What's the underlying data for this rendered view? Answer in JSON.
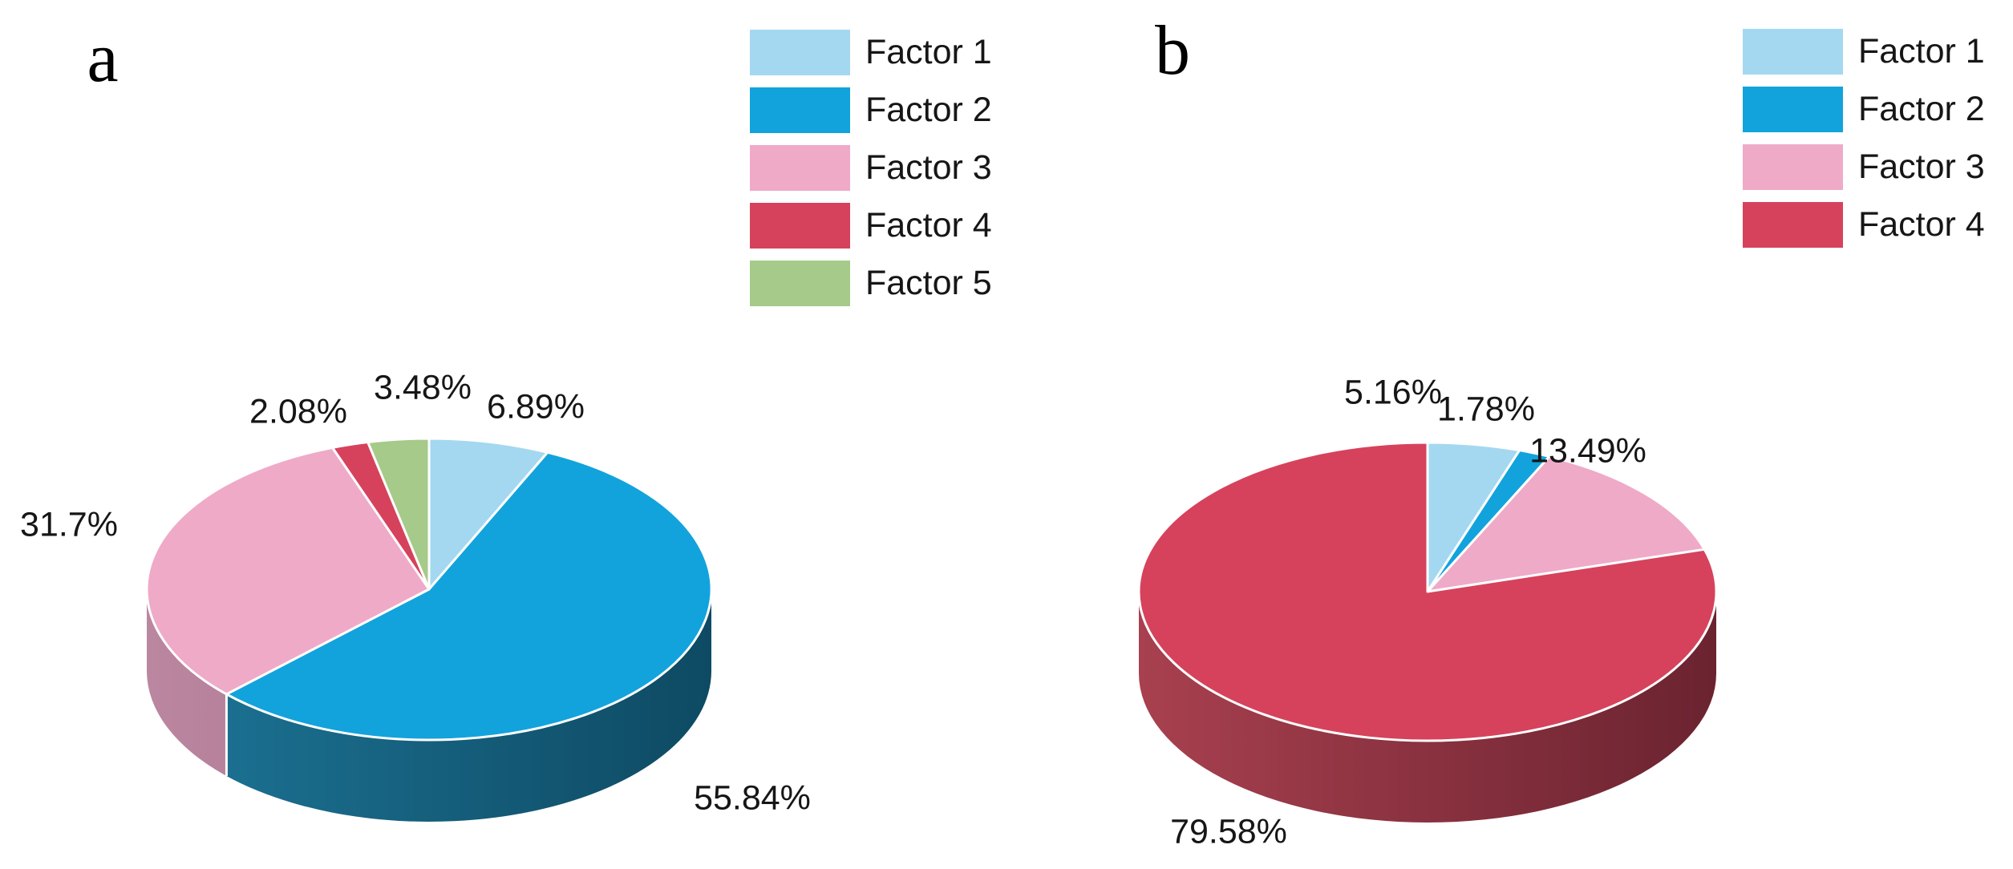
{
  "figure": {
    "background": "#ffffff",
    "text_color": "#161616"
  },
  "chart_data": [
    {
      "type": "pie",
      "title": "a",
      "effect": "3d",
      "direction": "clockwise",
      "start_angle_deg": 0,
      "legend_position": "top-right",
      "categories": [
        "Factor 1",
        "Factor 2",
        "Factor 3",
        "Factor 4",
        "Factor 5"
      ],
      "values": [
        6.89,
        55.84,
        31.7,
        2.08,
        3.48
      ],
      "labels": [
        "6.89%",
        "55.84%",
        "31.7%",
        "2.08%",
        "3.48%"
      ],
      "colors": [
        "#a4d8f1",
        "#12a3dc",
        "#efaac8",
        "#d6425c",
        "#a6ca89"
      ],
      "wall_colors": [
        null,
        [
          "#1d7597",
          "#0e4a63"
        ],
        [
          "#bb86a0",
          "#9d6680"
        ],
        null,
        null
      ]
    },
    {
      "type": "pie",
      "title": "b",
      "effect": "3d",
      "direction": "clockwise",
      "start_angle_deg": 0,
      "legend_position": "top-right",
      "categories": [
        "Factor 1",
        "Factor 2",
        "Factor 3",
        "Factor 4"
      ],
      "values": [
        5.16,
        1.78,
        13.49,
        79.58
      ],
      "labels": [
        "5.16%",
        "1.78%",
        "13.49%",
        "79.58%"
      ],
      "colors": [
        "#a4d8f1",
        "#12a3dc",
        "#efaac8",
        "#d6425c"
      ],
      "wall_colors": [
        null,
        null,
        null,
        [
          "#a8404f",
          "#6b2330"
        ]
      ]
    }
  ]
}
